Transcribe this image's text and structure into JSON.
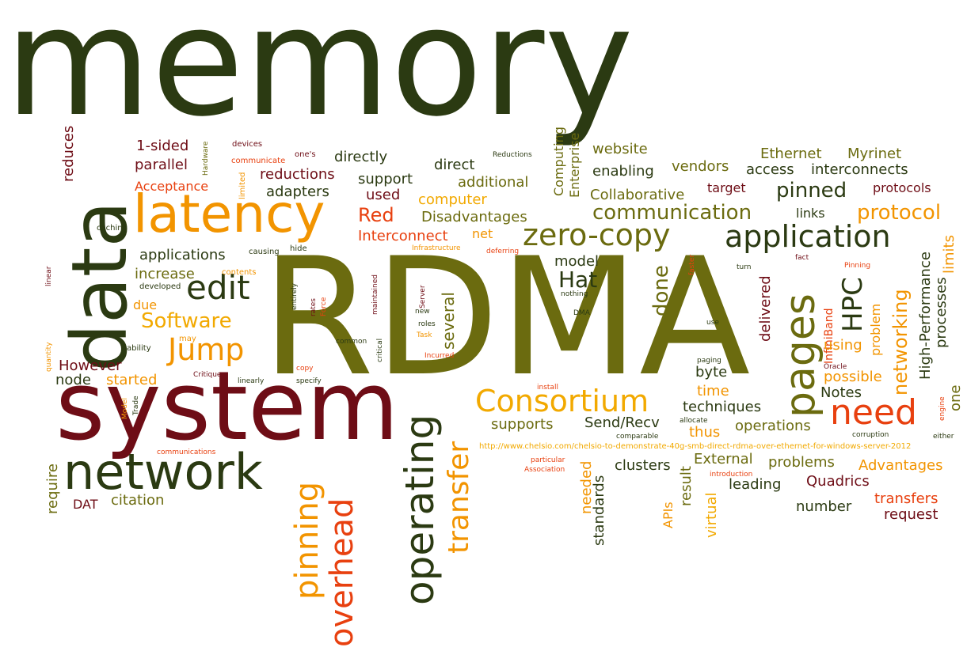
{
  "palette": {
    "dark_green": "#2b3a12",
    "olive": "#6b6b0f",
    "dark_red": "#6e0d16",
    "orange": "#f29400",
    "red_orange": "#e8400f",
    "gold": "#f2a900"
  },
  "words": [
    {
      "text": "memory",
      "color": "dark_green"
    },
    {
      "text": "RDMA",
      "color": "olive"
    },
    {
      "text": "system",
      "color": "dark_red"
    },
    {
      "text": "data",
      "color": "dark_green"
    },
    {
      "text": "network",
      "color": "dark_green"
    },
    {
      "text": "latency",
      "color": "orange"
    },
    {
      "text": "operating",
      "color": "dark_green"
    },
    {
      "text": "overhead",
      "color": "red_orange"
    },
    {
      "text": "pinning",
      "color": "orange"
    },
    {
      "text": "pages",
      "color": "olive"
    },
    {
      "text": "transfer",
      "color": "orange"
    },
    {
      "text": "application",
      "color": "dark_green"
    },
    {
      "text": "Consortium",
      "color": "gold"
    },
    {
      "text": "need",
      "color": "red_orange"
    },
    {
      "text": "edit",
      "color": "dark_green"
    },
    {
      "text": "Jump",
      "color": "orange"
    },
    {
      "text": "zero-copy",
      "color": "olive"
    },
    {
      "text": "Software",
      "color": "gold"
    },
    {
      "text": "communication",
      "color": "olive"
    },
    {
      "text": "protocol",
      "color": "orange"
    },
    {
      "text": "HPC",
      "color": "dark_green"
    },
    {
      "text": "networking",
      "color": "orange"
    },
    {
      "text": "Hat",
      "color": "dark_green"
    },
    {
      "text": "done",
      "color": "olive"
    },
    {
      "text": "Red",
      "color": "red_orange"
    },
    {
      "text": "Interconnect",
      "color": "red_orange"
    },
    {
      "text": "pinned",
      "color": "dark_green"
    },
    {
      "text": "High-Performance",
      "color": "dark_green"
    },
    {
      "text": "processes",
      "color": "dark_green"
    },
    {
      "text": "delivered",
      "color": "dark_red"
    },
    {
      "text": "InfiniBand",
      "color": "red_orange"
    },
    {
      "text": "limits",
      "color": "orange"
    },
    {
      "text": "one",
      "color": "olive"
    },
    {
      "text": "several",
      "color": "olive"
    },
    {
      "text": "directly",
      "color": "dark_green"
    },
    {
      "text": "direct",
      "color": "dark_green"
    },
    {
      "text": "reductions",
      "color": "dark_red"
    },
    {
      "text": "support",
      "color": "dark_green"
    },
    {
      "text": "additional",
      "color": "olive"
    },
    {
      "text": "adapters",
      "color": "dark_green"
    },
    {
      "text": "used",
      "color": "dark_red"
    },
    {
      "text": "computer",
      "color": "gold"
    },
    {
      "text": "Disadvantages",
      "color": "olive"
    },
    {
      "text": "net",
      "color": "orange"
    },
    {
      "text": "applications",
      "color": "dark_green"
    },
    {
      "text": "increase",
      "color": "olive"
    },
    {
      "text": "due",
      "color": "orange"
    },
    {
      "text": "However",
      "color": "dark_red"
    },
    {
      "text": "node",
      "color": "dark_green"
    },
    {
      "text": "started",
      "color": "orange"
    },
    {
      "text": "reduces",
      "color": "dark_red"
    },
    {
      "text": "1-sided",
      "color": "dark_red"
    },
    {
      "text": "parallel",
      "color": "dark_red"
    },
    {
      "text": "Acceptance",
      "color": "red_orange"
    },
    {
      "text": "website",
      "color": "olive"
    },
    {
      "text": "enabling",
      "color": "dark_green"
    },
    {
      "text": "vendors",
      "color": "olive"
    },
    {
      "text": "Ethernet",
      "color": "olive"
    },
    {
      "text": "Myrinet",
      "color": "olive"
    },
    {
      "text": "access",
      "color": "dark_green"
    },
    {
      "text": "interconnects",
      "color": "dark_green"
    },
    {
      "text": "target",
      "color": "dark_red"
    },
    {
      "text": "protocols",
      "color": "dark_red"
    },
    {
      "text": "Collaborative",
      "color": "olive"
    },
    {
      "text": "links",
      "color": "dark_green"
    },
    {
      "text": "Computing",
      "color": "olive"
    },
    {
      "text": "Enterprise",
      "color": "olive"
    },
    {
      "text": "model",
      "color": "dark_green"
    },
    {
      "text": "byte",
      "color": "dark_green"
    },
    {
      "text": "time",
      "color": "orange"
    },
    {
      "text": "techniques",
      "color": "dark_green"
    },
    {
      "text": "Notes",
      "color": "dark_green"
    },
    {
      "text": "possible",
      "color": "orange"
    },
    {
      "text": "using",
      "color": "orange"
    },
    {
      "text": "problem",
      "color": "orange"
    },
    {
      "text": "supports",
      "color": "olive"
    },
    {
      "text": "Send/Recv",
      "color": "dark_green"
    },
    {
      "text": "thus",
      "color": "orange"
    },
    {
      "text": "operations",
      "color": "olive"
    },
    {
      "text": "External",
      "color": "olive"
    },
    {
      "text": "clusters",
      "color": "dark_green"
    },
    {
      "text": "problems",
      "color": "olive"
    },
    {
      "text": "Advantages",
      "color": "orange"
    },
    {
      "text": "leading",
      "color": "dark_green"
    },
    {
      "text": "Quadrics",
      "color": "dark_red"
    },
    {
      "text": "number",
      "color": "dark_green"
    },
    {
      "text": "transfers",
      "color": "red_orange"
    },
    {
      "text": "request",
      "color": "dark_red"
    },
    {
      "text": "standards",
      "color": "dark_green"
    },
    {
      "text": "needed",
      "color": "orange"
    },
    {
      "text": "APIs",
      "color": "orange"
    },
    {
      "text": "result",
      "color": "olive"
    },
    {
      "text": "virtual",
      "color": "gold"
    },
    {
      "text": "require",
      "color": "olive"
    },
    {
      "text": "DAT",
      "color": "dark_red"
    },
    {
      "text": "citation",
      "color": "olive"
    },
    {
      "text": "http://www.chelsio.com/chelsio-to-demonstrate-40g-smb-direct-rdma-over-ethernet-for-windows-server-2012",
      "color": "gold"
    },
    {
      "text": "Reductions",
      "color": "dark_green"
    },
    {
      "text": "devices",
      "color": "dark_red"
    },
    {
      "text": "communicate",
      "color": "red_orange"
    },
    {
      "text": "one's",
      "color": "dark_red"
    },
    {
      "text": "Hardware",
      "color": "olive"
    },
    {
      "text": "limited",
      "color": "orange"
    },
    {
      "text": "caching",
      "color": "dark_green"
    },
    {
      "text": "causing",
      "color": "dark_green"
    },
    {
      "text": "hide",
      "color": "dark_green"
    },
    {
      "text": "Infrastructure",
      "color": "orange"
    },
    {
      "text": "deferring",
      "color": "red_orange"
    },
    {
      "text": "linear",
      "color": "dark_red"
    },
    {
      "text": "developed",
      "color": "dark_green"
    },
    {
      "text": "contents",
      "color": "orange"
    },
    {
      "text": "may",
      "color": "orange"
    },
    {
      "text": "ability",
      "color": "dark_green"
    },
    {
      "text": "quantity",
      "color": "orange"
    },
    {
      "text": "Critique",
      "color": "dark_red"
    },
    {
      "text": "Model",
      "color": "orange"
    },
    {
      "text": "Trade",
      "color": "dark_green"
    },
    {
      "text": "communications",
      "color": "red_orange"
    },
    {
      "text": "entirely",
      "color": "dark_green"
    },
    {
      "text": "rates",
      "color": "dark_red"
    },
    {
      "text": "Force",
      "color": "red_orange"
    },
    {
      "text": "maintained",
      "color": "dark_red"
    },
    {
      "text": "critical",
      "color": "dark_green"
    },
    {
      "text": "common",
      "color": "dark_green"
    },
    {
      "text": "copy",
      "color": "red_orange"
    },
    {
      "text": "linearly",
      "color": "dark_green"
    },
    {
      "text": "specify",
      "color": "dark_green"
    },
    {
      "text": "Server",
      "color": "dark_red"
    },
    {
      "text": "new",
      "color": "dark_green"
    },
    {
      "text": "roles",
      "color": "dark_green"
    },
    {
      "text": "Task",
      "color": "orange"
    },
    {
      "text": "Incurred",
      "color": "red_orange"
    },
    {
      "text": "nothing",
      "color": "dark_green"
    },
    {
      "text": "DMA",
      "color": "dark_green"
    },
    {
      "text": "faster",
      "color": "red_orange"
    },
    {
      "text": "turn",
      "color": "dark_green"
    },
    {
      "text": "fact",
      "color": "dark_red"
    },
    {
      "text": "Pinning",
      "color": "red_orange"
    },
    {
      "text": "use",
      "color": "dark_green"
    },
    {
      "text": "paging",
      "color": "dark_green"
    },
    {
      "text": "Oracle",
      "color": "dark_red"
    },
    {
      "text": "install",
      "color": "red_orange"
    },
    {
      "text": "allocate",
      "color": "dark_green"
    },
    {
      "text": "comparable",
      "color": "dark_green"
    },
    {
      "text": "corruption",
      "color": "dark_green"
    },
    {
      "text": "either",
      "color": "dark_green"
    },
    {
      "text": "engine",
      "color": "red_orange"
    },
    {
      "text": "particular",
      "color": "red_orange"
    },
    {
      "text": "Association",
      "color": "red_orange"
    },
    {
      "text": "introduction",
      "color": "red_orange"
    }
  ]
}
